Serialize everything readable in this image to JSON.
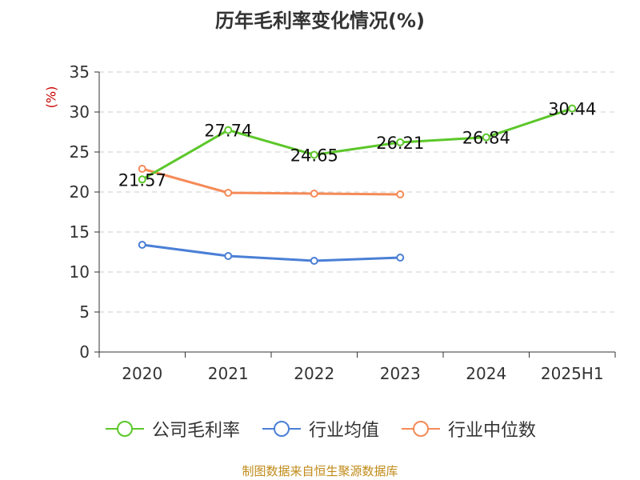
{
  "chart_data": {
    "type": "line",
    "title": "历年毛利率变化情况(%)",
    "ylabel": "(%)",
    "xlabel": "",
    "categories": [
      "2020",
      "2021",
      "2022",
      "2023",
      "2024",
      "2025H1"
    ],
    "ylim": [
      0,
      35
    ],
    "yticks": [
      0,
      5,
      10,
      15,
      20,
      25,
      30,
      35
    ],
    "grid": true,
    "legend_position": "bottom",
    "series": [
      {
        "name": "公司毛利率",
        "color": "#5cc72a",
        "values": [
          21.57,
          27.74,
          24.65,
          26.21,
          26.84,
          30.44
        ],
        "labels": [
          "21.57",
          "27.74",
          "24.65",
          "26.21",
          "26.84",
          "30.44"
        ]
      },
      {
        "name": "行业均值",
        "color": "#4a7fd6",
        "values": [
          13.4,
          12.0,
          11.4,
          11.8,
          null,
          null
        ]
      },
      {
        "name": "行业中位数",
        "color": "#f58a57",
        "values": [
          22.9,
          19.9,
          19.8,
          19.7,
          null,
          null
        ]
      }
    ]
  },
  "footer": "制图数据来自恒生聚源数据库"
}
